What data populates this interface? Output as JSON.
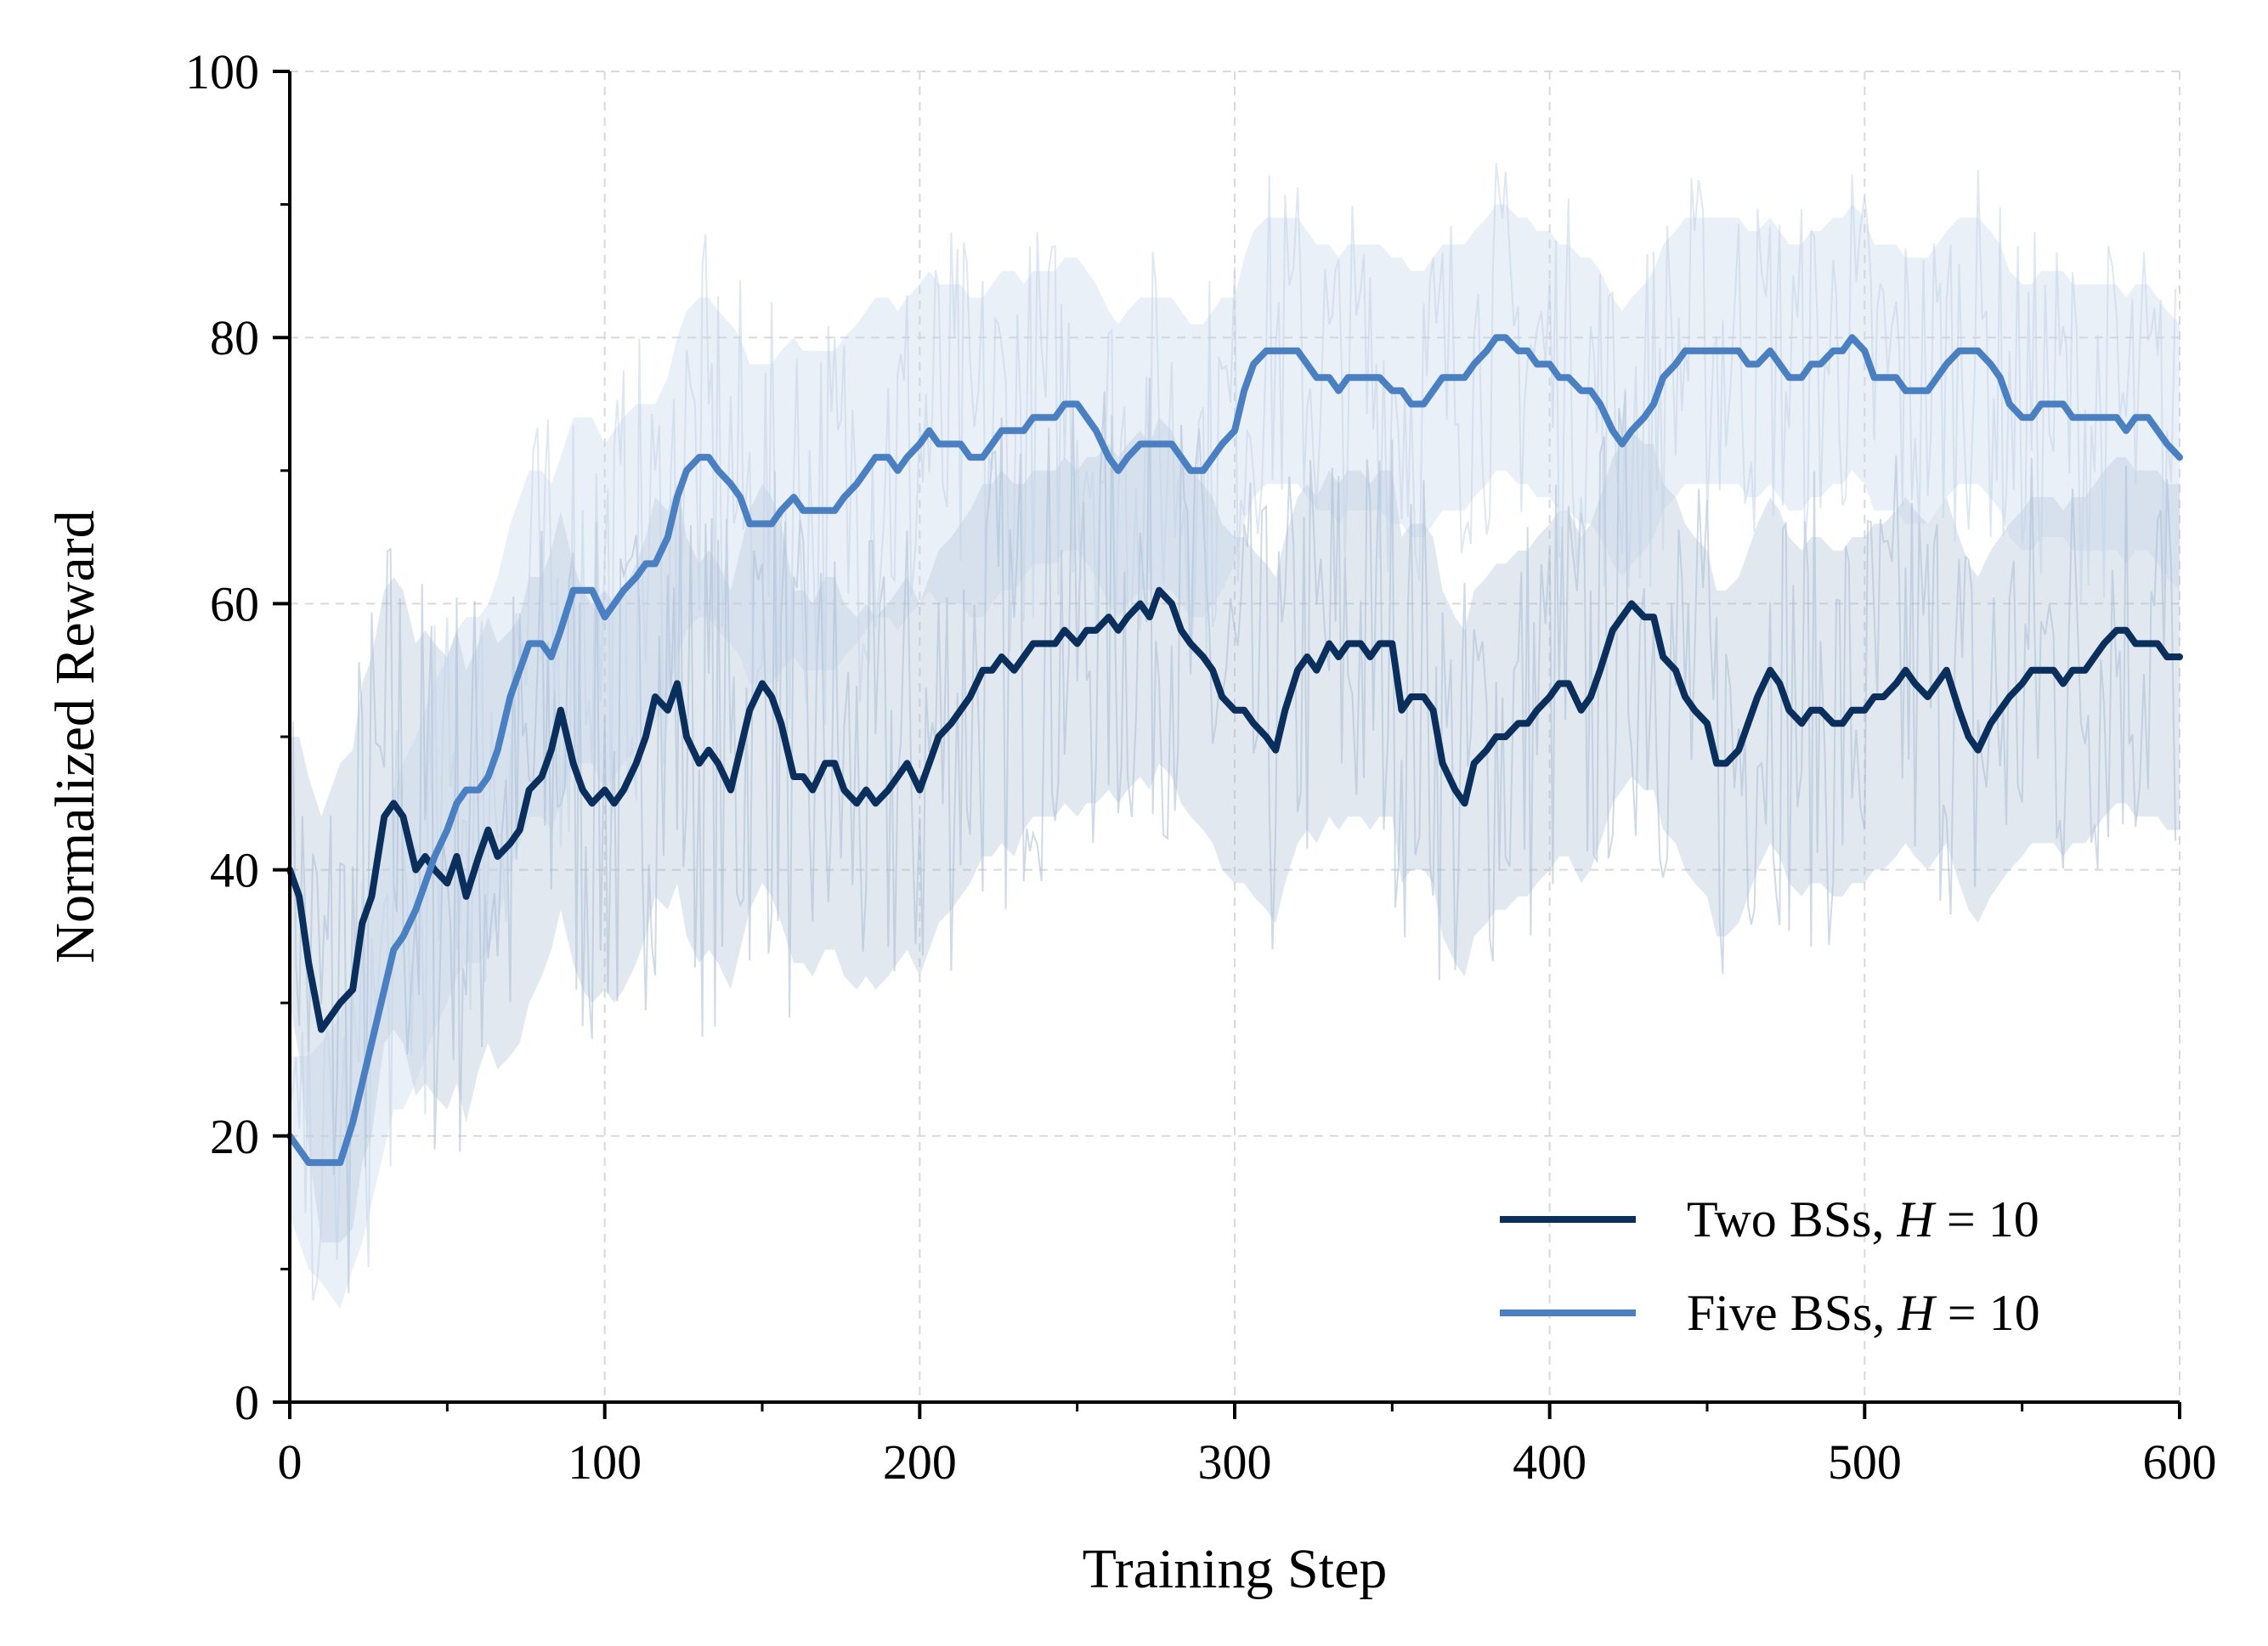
{
  "chart_data": {
    "type": "line",
    "xlabel": "Training Step",
    "ylabel": "Normalized Reward",
    "xlim": [
      0,
      600
    ],
    "ylim": [
      0,
      100
    ],
    "xticks": [
      0,
      100,
      200,
      300,
      400,
      500,
      600
    ],
    "yticks": [
      0,
      20,
      40,
      60,
      80,
      100
    ],
    "x_minor_step": 50,
    "y_minor_step": 10,
    "grid": true,
    "legend_position": "lower-right",
    "series": [
      {
        "name": "Two BSs, H=10",
        "label_prefix": "Two BSs, ",
        "label_var": "H",
        "label_eq": " = ",
        "label_val": "10",
        "color": "#0a2f5c",
        "band_color": "#a9bcd3",
        "x": [
          0,
          3,
          6,
          10,
          13,
          16,
          20,
          23,
          26,
          30,
          33,
          36,
          40,
          43,
          46,
          50,
          53,
          56,
          60,
          63,
          66,
          70,
          73,
          76,
          80,
          83,
          86,
          90,
          93,
          96,
          100,
          103,
          106,
          110,
          113,
          116,
          120,
          123,
          126,
          130,
          133,
          136,
          140,
          143,
          146,
          150,
          153,
          156,
          160,
          163,
          166,
          170,
          173,
          176,
          180,
          183,
          186,
          190,
          193,
          196,
          200,
          203,
          206,
          210,
          213,
          216,
          220,
          223,
          226,
          230,
          233,
          236,
          240,
          243,
          246,
          250,
          253,
          256,
          260,
          263,
          266,
          270,
          273,
          276,
          280,
          283,
          286,
          290,
          293,
          296,
          300,
          303,
          306,
          310,
          313,
          316,
          320,
          323,
          326,
          330,
          333,
          336,
          340,
          343,
          346,
          350,
          353,
          356,
          360,
          363,
          366,
          370,
          373,
          376,
          380,
          383,
          386,
          390,
          393,
          396,
          400,
          403,
          406,
          410,
          413,
          416,
          420,
          423,
          426,
          430,
          433,
          436,
          440,
          443,
          446,
          450,
          453,
          456,
          460,
          463,
          466,
          470,
          473,
          476,
          480,
          483,
          486,
          490,
          493,
          496,
          500,
          503,
          506,
          510,
          513,
          516,
          520,
          523,
          526,
          530,
          533,
          536,
          540,
          543,
          546,
          550,
          553,
          556,
          560,
          563,
          566,
          570,
          573,
          576,
          580,
          583,
          586,
          590,
          593,
          596,
          600
        ],
        "values": [
          40,
          38,
          33,
          28,
          29,
          30,
          31,
          36,
          38,
          44,
          45,
          44,
          40,
          41,
          40,
          39,
          41,
          38,
          41,
          43,
          41,
          42,
          43,
          46,
          47,
          49,
          52,
          48,
          46,
          45,
          46,
          45,
          46,
          48,
          50,
          53,
          52,
          54,
          50,
          48,
          49,
          48,
          46,
          49,
          52,
          54,
          53,
          51,
          47,
          47,
          46,
          48,
          48,
          46,
          45,
          46,
          45,
          46,
          47,
          48,
          46,
          48,
          50,
          51,
          52,
          53,
          55,
          55,
          56,
          55,
          56,
          57,
          57,
          57,
          58,
          57,
          58,
          58,
          59,
          58,
          59,
          60,
          59,
          61,
          60,
          58,
          57,
          56,
          55,
          53,
          52,
          52,
          51,
          50,
          49,
          52,
          55,
          56,
          55,
          57,
          56,
          57,
          57,
          56,
          57,
          57,
          52,
          53,
          53,
          52,
          48,
          46,
          45,
          48,
          49,
          50,
          50,
          51,
          51,
          52,
          53,
          54,
          54,
          52,
          53,
          55,
          58,
          59,
          60,
          59,
          59,
          56,
          55,
          53,
          52,
          51,
          48,
          48,
          49,
          51,
          53,
          55,
          54,
          52,
          51,
          52,
          52,
          51,
          51,
          52,
          52,
          53,
          53,
          54,
          55,
          54,
          53,
          54,
          55,
          52,
          50,
          49,
          51,
          52,
          53,
          54,
          55,
          55,
          55,
          54,
          55,
          55,
          56,
          57,
          58,
          58,
          57,
          57,
          57,
          56,
          56
        ],
        "band_halfwidth": [
          10,
          12,
          14,
          16,
          17,
          18,
          18,
          18,
          18,
          17,
          17,
          17,
          17,
          17,
          17,
          17,
          17,
          17,
          16,
          16,
          16,
          16,
          16,
          16,
          15,
          15,
          15,
          15,
          15,
          15,
          15,
          15,
          15,
          15,
          15,
          15,
          15,
          15,
          15,
          15,
          15,
          15,
          15,
          15,
          15,
          15,
          15,
          15,
          14,
          14,
          14,
          14,
          14,
          14,
          14,
          14,
          14,
          14,
          14,
          14,
          14,
          14,
          14,
          14,
          14,
          14,
          14,
          14,
          14,
          14,
          13,
          13,
          13,
          13,
          13,
          13,
          13,
          13,
          13,
          13,
          13,
          13,
          13,
          13,
          13,
          13,
          13,
          13,
          13,
          13,
          13,
          13,
          13,
          13,
          13,
          13,
          13,
          13,
          13,
          13,
          13,
          13,
          13,
          13,
          13,
          13,
          13,
          13,
          13,
          13,
          13,
          13,
          13,
          13,
          13,
          13,
          13,
          13,
          13,
          13,
          13,
          13,
          13,
          13,
          13,
          13,
          13,
          13,
          13,
          13,
          13,
          13,
          13,
          13,
          13,
          13,
          13,
          13,
          13,
          13,
          13,
          13,
          13,
          13,
          13,
          13,
          13,
          13,
          13,
          13,
          13,
          13,
          13,
          13,
          13,
          13,
          13,
          13,
          13,
          13,
          13,
          13,
          13,
          13,
          13,
          13,
          13,
          13,
          13,
          13,
          13,
          13,
          13,
          13,
          13,
          13,
          13,
          13,
          13,
          13,
          13
        ]
      },
      {
        "name": "Five BSs, H=10",
        "label_prefix": "Five BSs, ",
        "label_var": "H",
        "label_eq": " = ",
        "label_val": "10",
        "color": "#4a7fc1",
        "band_color": "#c3d3e8",
        "x": [
          0,
          3,
          6,
          10,
          13,
          16,
          20,
          23,
          26,
          30,
          33,
          36,
          40,
          43,
          46,
          50,
          53,
          56,
          60,
          63,
          66,
          70,
          73,
          76,
          80,
          83,
          86,
          90,
          93,
          96,
          100,
          103,
          106,
          110,
          113,
          116,
          120,
          123,
          126,
          130,
          133,
          136,
          140,
          143,
          146,
          150,
          153,
          156,
          160,
          163,
          166,
          170,
          173,
          176,
          180,
          183,
          186,
          190,
          193,
          196,
          200,
          203,
          206,
          210,
          213,
          216,
          220,
          223,
          226,
          230,
          233,
          236,
          240,
          243,
          246,
          250,
          253,
          256,
          260,
          263,
          266,
          270,
          273,
          276,
          280,
          283,
          286,
          290,
          293,
          296,
          300,
          303,
          306,
          310,
          313,
          316,
          320,
          323,
          326,
          330,
          333,
          336,
          340,
          343,
          346,
          350,
          353,
          356,
          360,
          363,
          366,
          370,
          373,
          376,
          380,
          383,
          386,
          390,
          393,
          396,
          400,
          403,
          406,
          410,
          413,
          416,
          420,
          423,
          426,
          430,
          433,
          436,
          440,
          443,
          446,
          450,
          453,
          456,
          460,
          463,
          466,
          470,
          473,
          476,
          480,
          483,
          486,
          490,
          493,
          496,
          500,
          503,
          506,
          510,
          513,
          516,
          520,
          523,
          526,
          530,
          533,
          536,
          540,
          543,
          546,
          550,
          553,
          556,
          560,
          563,
          566,
          570,
          573,
          576,
          580,
          583,
          586,
          590,
          593,
          596,
          600
        ],
        "values": [
          20,
          19,
          18,
          18,
          18,
          18,
          21,
          24,
          27,
          31,
          34,
          35,
          37,
          39,
          41,
          43,
          45,
          46,
          46,
          47,
          49,
          53,
          55,
          57,
          57,
          56,
          58,
          61,
          61,
          61,
          59,
          60,
          61,
          62,
          63,
          63,
          65,
          68,
          70,
          71,
          71,
          70,
          69,
          68,
          66,
          66,
          66,
          67,
          68,
          67,
          67,
          67,
          67,
          68,
          69,
          70,
          71,
          71,
          70,
          71,
          72,
          73,
          72,
          72,
          72,
          71,
          71,
          72,
          73,
          73,
          73,
          74,
          74,
          74,
          75,
          75,
          74,
          73,
          71,
          70,
          71,
          72,
          72,
          72,
          72,
          71,
          70,
          70,
          71,
          72,
          73,
          76,
          78,
          79,
          79,
          79,
          79,
          78,
          77,
          77,
          76,
          77,
          77,
          77,
          77,
          76,
          76,
          75,
          75,
          76,
          77,
          77,
          77,
          78,
          79,
          80,
          80,
          79,
          79,
          78,
          78,
          77,
          77,
          76,
          76,
          75,
          73,
          72,
          73,
          74,
          75,
          77,
          78,
          79,
          79,
          79,
          79,
          79,
          79,
          78,
          78,
          79,
          78,
          77,
          77,
          78,
          78,
          79,
          79,
          80,
          79,
          77,
          77,
          77,
          76,
          76,
          76,
          77,
          78,
          79,
          79,
          79,
          78,
          77,
          75,
          74,
          74,
          75,
          75,
          75,
          74,
          74,
          74,
          74,
          74,
          73,
          74,
          74,
          73,
          72,
          71
        ],
        "band_halfwidth": [
          6,
          7,
          8,
          9,
          10,
          11,
          11,
          12,
          12,
          12,
          12,
          13,
          13,
          13,
          13,
          13,
          13,
          13,
          13,
          13,
          13,
          13,
          13,
          13,
          13,
          13,
          13,
          13,
          13,
          13,
          13,
          13,
          13,
          13,
          12,
          12,
          12,
          12,
          12,
          12,
          12,
          12,
          12,
          12,
          12,
          12,
          12,
          12,
          12,
          12,
          12,
          12,
          12,
          12,
          12,
          12,
          12,
          12,
          12,
          12,
          12,
          12,
          12,
          12,
          12,
          12,
          12,
          12,
          12,
          12,
          11,
          11,
          11,
          11,
          11,
          11,
          11,
          11,
          11,
          11,
          11,
          11,
          11,
          11,
          11,
          11,
          11,
          11,
          11,
          11,
          10,
          10,
          10,
          10,
          10,
          10,
          10,
          10,
          10,
          10,
          10,
          10,
          10,
          10,
          10,
          10,
          10,
          10,
          10,
          10,
          10,
          10,
          10,
          10,
          10,
          10,
          10,
          10,
          10,
          10,
          10,
          10,
          10,
          10,
          10,
          10,
          10,
          10,
          10,
          10,
          10,
          10,
          10,
          10,
          10,
          10,
          10,
          10,
          10,
          10,
          10,
          10,
          10,
          10,
          10,
          10,
          10,
          10,
          10,
          10,
          10,
          10,
          10,
          10,
          10,
          10,
          10,
          10,
          10,
          10,
          10,
          10,
          10,
          10,
          10,
          10,
          10,
          10,
          10,
          10,
          10,
          10,
          10,
          10,
          10,
          10,
          10,
          10,
          10,
          10,
          10
        ]
      }
    ]
  }
}
